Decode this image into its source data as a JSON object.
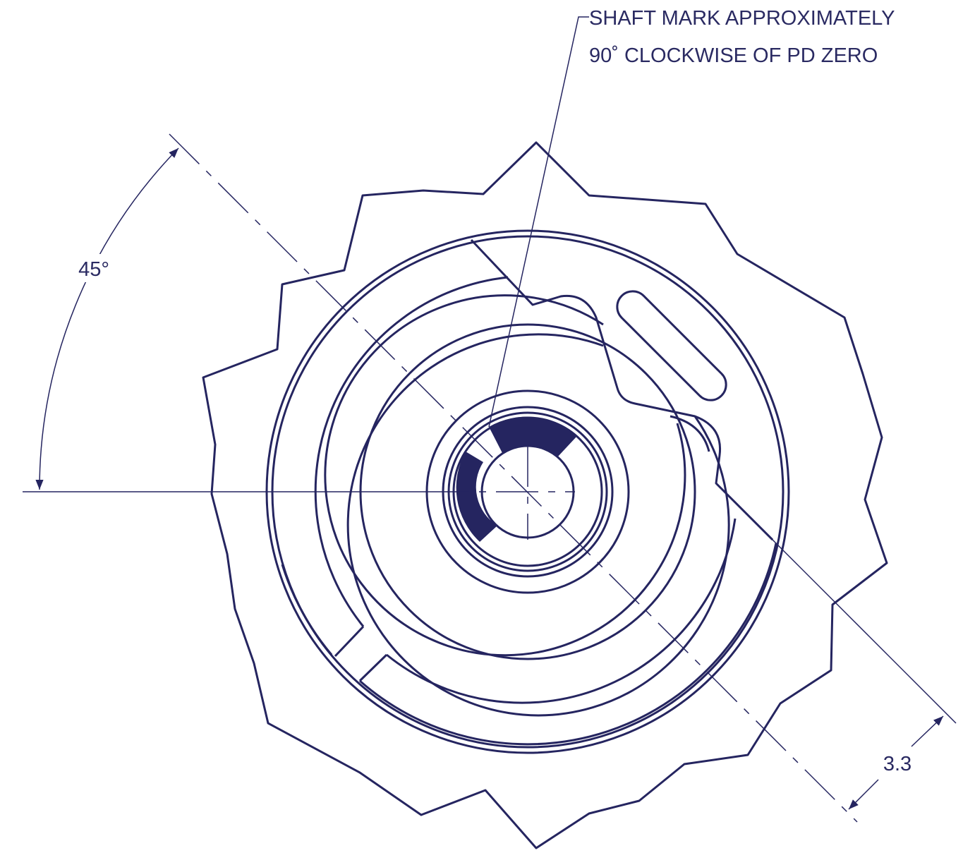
{
  "annotation": {
    "lines": [
      "SHAFT MARK APPROXIMATELY",
      "90˚ CLOCKWISE OF PD ZERO"
    ]
  },
  "angle_dimension": {
    "label": "45°"
  },
  "offset_dimension": {
    "label": "3.3"
  }
}
